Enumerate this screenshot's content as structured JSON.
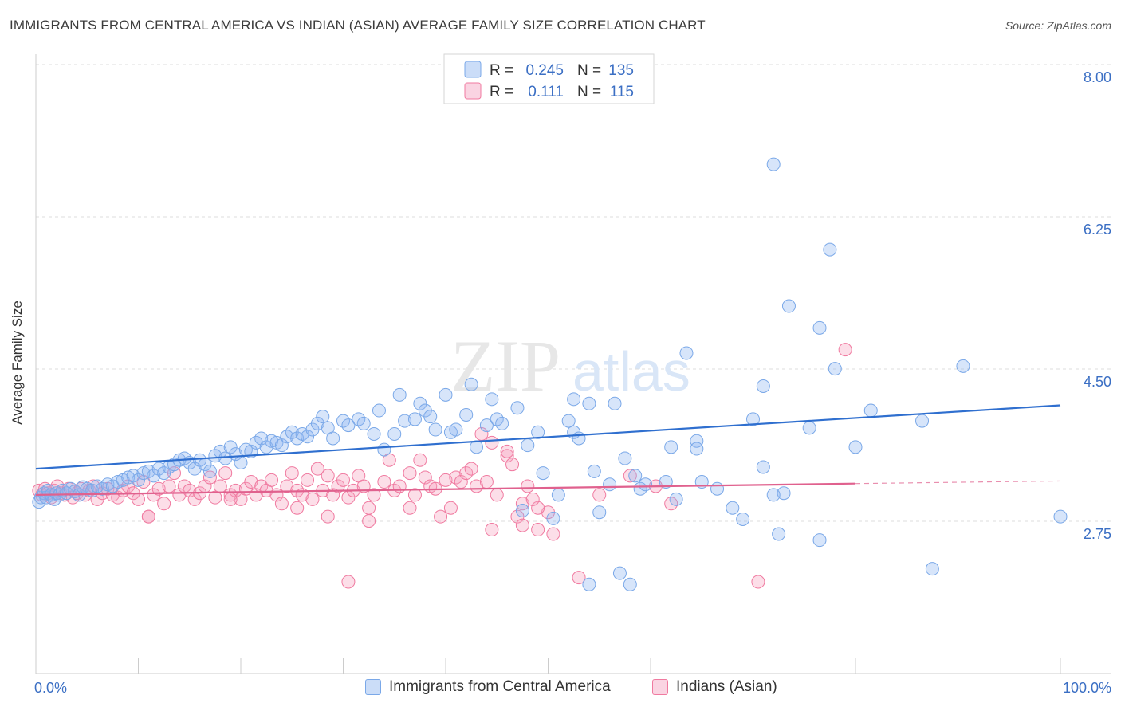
{
  "chart_data": {
    "type": "scatter",
    "title": "IMMIGRANTS FROM CENTRAL AMERICA VS INDIAN (ASIAN) AVERAGE FAMILY SIZE CORRELATION CHART",
    "source": "Source: ZipAtlas.com",
    "watermark_zip": "ZIP",
    "watermark_atlas": "atlas",
    "ylabel": "Average Family Size",
    "xlabel": "",
    "x_tick_left": "0.0%",
    "x_tick_right": "100.0%",
    "xlim": [
      0,
      100
    ],
    "ylim": [
      1.35,
      8.25
    ],
    "y_ticks": [
      {
        "value": 8.0,
        "label": "8.00"
      },
      {
        "value": 6.25,
        "label": "6.25"
      },
      {
        "value": 4.5,
        "label": "4.50"
      },
      {
        "value": 2.75,
        "label": "2.75"
      }
    ],
    "legend": {
      "r_label": "R =",
      "n_label": "N ="
    },
    "series": [
      {
        "name": "Immigrants from Central America",
        "color": "#7aa8e8",
        "fill": "rgba(140,180,240,0.35)",
        "line_color": "#2f6fcf",
        "r": "0.245",
        "n": "135",
        "trend": {
          "x": [
            0,
            100
          ],
          "y": [
            3.5,
            4.23
          ]
        },
        "points": [
          [
            0.3,
            3.12
          ],
          [
            0.5,
            3.17
          ],
          [
            0.8,
            3.22
          ],
          [
            1.0,
            3.17
          ],
          [
            1.2,
            3.25
          ],
          [
            1.5,
            3.2
          ],
          [
            1.8,
            3.15
          ],
          [
            2.0,
            3.22
          ],
          [
            2.3,
            3.2
          ],
          [
            2.6,
            3.25
          ],
          [
            3.0,
            3.22
          ],
          [
            3.4,
            3.27
          ],
          [
            3.8,
            3.24
          ],
          [
            4.2,
            3.2
          ],
          [
            4.6,
            3.29
          ],
          [
            5.0,
            3.27
          ],
          [
            5.5,
            3.25
          ],
          [
            6.0,
            3.3
          ],
          [
            6.5,
            3.27
          ],
          [
            7.0,
            3.32
          ],
          [
            7.5,
            3.3
          ],
          [
            8.0,
            3.35
          ],
          [
            8.5,
            3.37
          ],
          [
            9.0,
            3.4
          ],
          [
            9.5,
            3.42
          ],
          [
            10.0,
            3.37
          ],
          [
            10.5,
            3.45
          ],
          [
            11.0,
            3.47
          ],
          [
            11.5,
            3.42
          ],
          [
            12.0,
            3.5
          ],
          [
            12.5,
            3.45
          ],
          [
            13.0,
            3.52
          ],
          [
            13.5,
            3.55
          ],
          [
            14.0,
            3.6
          ],
          [
            14.5,
            3.62
          ],
          [
            15.0,
            3.57
          ],
          [
            15.5,
            3.5
          ],
          [
            16.0,
            3.6
          ],
          [
            16.5,
            3.55
          ],
          [
            17.0,
            3.47
          ],
          [
            17.5,
            3.65
          ],
          [
            18.0,
            3.7
          ],
          [
            18.5,
            3.62
          ],
          [
            19.0,
            3.75
          ],
          [
            19.5,
            3.67
          ],
          [
            20.0,
            3.57
          ],
          [
            20.5,
            3.72
          ],
          [
            21.0,
            3.7
          ],
          [
            21.5,
            3.8
          ],
          [
            22.0,
            3.85
          ],
          [
            22.5,
            3.75
          ],
          [
            23.0,
            3.82
          ],
          [
            23.5,
            3.8
          ],
          [
            24.0,
            3.77
          ],
          [
            24.5,
            3.87
          ],
          [
            25.0,
            3.92
          ],
          [
            25.5,
            3.85
          ],
          [
            26.0,
            3.9
          ],
          [
            26.5,
            3.87
          ],
          [
            27.0,
            3.95
          ],
          [
            27.5,
            4.02
          ],
          [
            28.0,
            4.1
          ],
          [
            28.5,
            3.97
          ],
          [
            29.0,
            3.85
          ],
          [
            30.0,
            4.05
          ],
          [
            30.5,
            4.0
          ],
          [
            31.5,
            4.07
          ],
          [
            32.0,
            4.02
          ],
          [
            33.0,
            3.9
          ],
          [
            33.5,
            4.17
          ],
          [
            34.0,
            3.72
          ],
          [
            35.0,
            3.9
          ],
          [
            35.5,
            4.35
          ],
          [
            36.0,
            4.05
          ],
          [
            37.0,
            4.07
          ],
          [
            37.5,
            4.25
          ],
          [
            38.0,
            4.17
          ],
          [
            38.5,
            4.1
          ],
          [
            39.0,
            3.95
          ],
          [
            40.0,
            4.35
          ],
          [
            40.5,
            3.92
          ],
          [
            41.0,
            3.95
          ],
          [
            42.0,
            4.12
          ],
          [
            42.5,
            4.47
          ],
          [
            43.0,
            3.75
          ],
          [
            44.0,
            4.0
          ],
          [
            44.5,
            4.3
          ],
          [
            45.0,
            4.07
          ],
          [
            45.5,
            4.02
          ],
          [
            47.0,
            4.2
          ],
          [
            47.5,
            3.02
          ],
          [
            48.0,
            3.77
          ],
          [
            49.0,
            3.92
          ],
          [
            49.5,
            3.45
          ],
          [
            50.5,
            2.93
          ],
          [
            51.0,
            3.2
          ],
          [
            52.0,
            4.05
          ],
          [
            52.5,
            3.92
          ],
          [
            53.0,
            3.85
          ],
          [
            54.0,
            4.25
          ],
          [
            54.5,
            3.47
          ],
          [
            55.0,
            3.0
          ],
          [
            56.0,
            3.32
          ],
          [
            56.5,
            4.25
          ],
          [
            57.5,
            3.62
          ],
          [
            58.0,
            2.17
          ],
          [
            58.5,
            3.42
          ],
          [
            59.0,
            3.27
          ],
          [
            59.5,
            3.32
          ],
          [
            61.5,
            3.35
          ],
          [
            62.0,
            3.75
          ],
          [
            62.5,
            3.15
          ],
          [
            64.5,
            3.82
          ],
          [
            65.0,
            3.35
          ],
          [
            66.5,
            3.27
          ],
          [
            68.0,
            3.05
          ],
          [
            69.0,
            2.92
          ],
          [
            70.0,
            4.07
          ],
          [
            71.0,
            3.52
          ],
          [
            72.5,
            2.75
          ],
          [
            73.0,
            3.22
          ],
          [
            75.5,
            3.97
          ],
          [
            76.5,
            5.12
          ],
          [
            78.0,
            4.65
          ],
          [
            80.0,
            3.75
          ],
          [
            81.5,
            4.17
          ],
          [
            86.5,
            4.05
          ],
          [
            87.5,
            2.35
          ],
          [
            90.5,
            4.68
          ],
          [
            100.0,
            2.95
          ],
          [
            76.5,
            2.68
          ],
          [
            72.0,
            3.2
          ],
          [
            64.5,
            3.73
          ],
          [
            57.0,
            2.3
          ],
          [
            52.5,
            4.3
          ]
        ],
        "extra_points": [
          [
            72.0,
            7.0
          ],
          [
            77.5,
            6.02
          ],
          [
            73.5,
            5.37
          ],
          [
            63.5,
            4.83
          ],
          [
            71.0,
            4.45
          ],
          [
            54.0,
            2.17
          ]
        ]
      },
      {
        "name": "Indians (Asian)",
        "color": "#f07aa0",
        "fill": "rgba(245,160,190,0.35)",
        "line_color": "#e0618e",
        "r": "0.111",
        "n": "115",
        "trend": {
          "x": [
            0,
            80
          ],
          "y": [
            3.2,
            3.33
          ]
        },
        "trend_dashed": {
          "x": [
            80,
            100
          ],
          "y": [
            3.33,
            3.36
          ]
        },
        "points": [
          [
            0.3,
            3.25
          ],
          [
            0.6,
            3.2
          ],
          [
            0.9,
            3.27
          ],
          [
            1.2,
            3.22
          ],
          [
            1.5,
            3.17
          ],
          [
            1.8,
            3.25
          ],
          [
            2.1,
            3.3
          ],
          [
            2.4,
            3.22
          ],
          [
            2.8,
            3.2
          ],
          [
            3.2,
            3.27
          ],
          [
            3.6,
            3.17
          ],
          [
            4.0,
            3.22
          ],
          [
            4.4,
            3.27
          ],
          [
            4.8,
            3.2
          ],
          [
            5.2,
            3.25
          ],
          [
            5.6,
            3.3
          ],
          [
            6.0,
            3.15
          ],
          [
            6.5,
            3.22
          ],
          [
            7.0,
            3.27
          ],
          [
            7.5,
            3.2
          ],
          [
            8.0,
            3.17
          ],
          [
            8.5,
            3.25
          ],
          [
            9.0,
            3.3
          ],
          [
            9.5,
            3.22
          ],
          [
            10.0,
            3.15
          ],
          [
            10.5,
            3.35
          ],
          [
            11.0,
            2.95
          ],
          [
            11.5,
            3.2
          ],
          [
            12.0,
            3.27
          ],
          [
            12.5,
            3.1
          ],
          [
            13.0,
            3.3
          ],
          [
            13.5,
            3.45
          ],
          [
            14.0,
            3.2
          ],
          [
            14.5,
            3.3
          ],
          [
            15.0,
            3.25
          ],
          [
            15.5,
            3.15
          ],
          [
            16.0,
            3.22
          ],
          [
            16.5,
            3.3
          ],
          [
            17.0,
            3.4
          ],
          [
            17.5,
            3.17
          ],
          [
            18.0,
            3.3
          ],
          [
            18.5,
            3.45
          ],
          [
            19.0,
            3.2
          ],
          [
            19.5,
            3.25
          ],
          [
            20.0,
            3.15
          ],
          [
            20.5,
            3.27
          ],
          [
            21.0,
            3.35
          ],
          [
            21.5,
            3.2
          ],
          [
            22.0,
            3.3
          ],
          [
            22.5,
            3.25
          ],
          [
            23.0,
            3.37
          ],
          [
            23.5,
            3.2
          ],
          [
            24.0,
            3.1
          ],
          [
            24.5,
            3.3
          ],
          [
            25.0,
            3.45
          ],
          [
            25.5,
            3.25
          ],
          [
            26.0,
            3.2
          ],
          [
            26.5,
            3.37
          ],
          [
            27.0,
            3.15
          ],
          [
            27.5,
            3.5
          ],
          [
            28.0,
            3.25
          ],
          [
            28.5,
            3.42
          ],
          [
            29.0,
            3.2
          ],
          [
            29.5,
            3.3
          ],
          [
            30.0,
            3.37
          ],
          [
            30.5,
            3.17
          ],
          [
            31.0,
            3.25
          ],
          [
            31.5,
            3.42
          ],
          [
            32.0,
            3.3
          ],
          [
            32.5,
            3.05
          ],
          [
            33.0,
            3.2
          ],
          [
            34.0,
            3.35
          ],
          [
            34.5,
            3.6
          ],
          [
            35.0,
            3.25
          ],
          [
            35.5,
            3.3
          ],
          [
            36.5,
            3.45
          ],
          [
            37.0,
            3.2
          ],
          [
            37.5,
            3.6
          ],
          [
            38.0,
            3.4
          ],
          [
            38.5,
            3.3
          ],
          [
            39.0,
            3.27
          ],
          [
            40.0,
            3.37
          ],
          [
            40.5,
            3.05
          ],
          [
            41.0,
            3.4
          ],
          [
            41.5,
            3.35
          ],
          [
            42.0,
            3.45
          ],
          [
            42.5,
            3.5
          ],
          [
            43.0,
            3.3
          ],
          [
            43.5,
            3.9
          ],
          [
            44.0,
            3.35
          ],
          [
            44.5,
            3.8
          ],
          [
            45.0,
            3.2
          ],
          [
            46.0,
            3.65
          ],
          [
            46.5,
            3.55
          ],
          [
            47.0,
            2.95
          ],
          [
            47.5,
            3.1
          ],
          [
            48.0,
            3.3
          ],
          [
            49.0,
            2.8
          ],
          [
            50.0,
            3.0
          ],
          [
            50.5,
            2.75
          ],
          [
            49.0,
            3.05
          ],
          [
            48.5,
            3.15
          ],
          [
            53.0,
            2.25
          ],
          [
            58.0,
            3.42
          ],
          [
            60.5,
            3.3
          ],
          [
            62.0,
            3.1
          ],
          [
            28.5,
            2.95
          ],
          [
            36.5,
            3.05
          ],
          [
            32.5,
            2.9
          ],
          [
            55.0,
            3.2
          ],
          [
            11.0,
            2.95
          ],
          [
            19.0,
            3.15
          ],
          [
            25.5,
            3.05
          ],
          [
            39.5,
            2.95
          ],
          [
            46.0,
            3.7
          ]
        ],
        "extra_points": [
          [
            79.0,
            4.87
          ],
          [
            70.5,
            2.2
          ],
          [
            30.5,
            2.2
          ],
          [
            47.5,
            2.85
          ],
          [
            44.5,
            2.8
          ]
        ]
      }
    ]
  },
  "bottom_legend": {
    "series_1": "Immigrants from Central America",
    "series_2": "Indians (Asian)"
  }
}
